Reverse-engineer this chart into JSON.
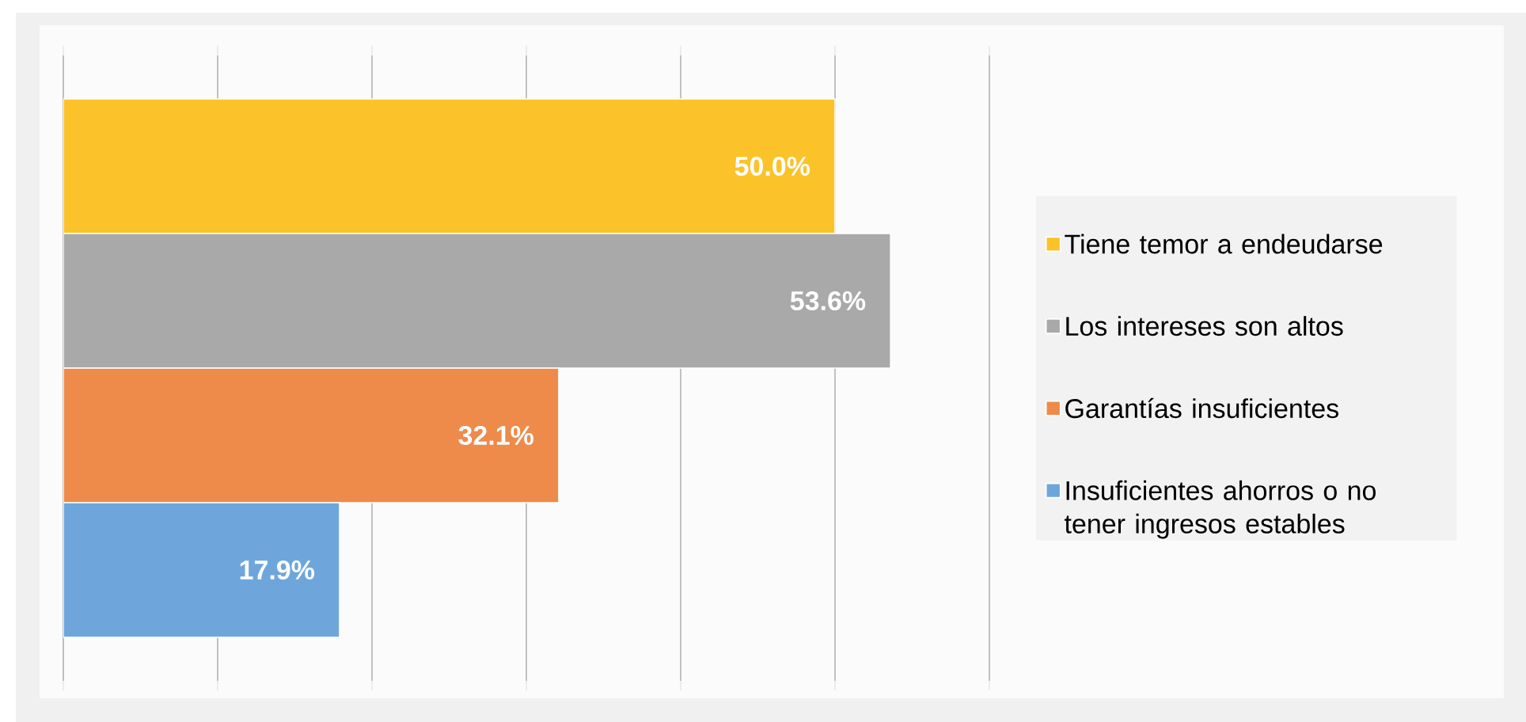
{
  "chart_data": {
    "type": "bar",
    "orientation": "horizontal",
    "categories": [
      null
    ],
    "series": [
      {
        "name": "Tiene temor a endeudarse",
        "color": "#fcc22a",
        "values": [
          50.0
        ],
        "value_labels": [
          "50.0%"
        ]
      },
      {
        "name": "Los intereses son altos",
        "color": "#a9a9a9",
        "values": [
          53.6
        ],
        "value_labels": [
          "53.6%"
        ]
      },
      {
        "name": "Garantías insuficientes",
        "color": "#ee8a4a",
        "values": [
          32.1
        ],
        "value_labels": [
          "32.1%"
        ]
      },
      {
        "name": "Insuficientes ahorros o no tener ingresos estables",
        "color": "#6ea6dc",
        "values": [
          17.9
        ],
        "value_labels": [
          "17.9%"
        ]
      }
    ],
    "xlim": [
      0,
      60
    ],
    "xticks": [
      {
        "value": 0,
        "label": null
      },
      {
        "value": 10,
        "label": null
      },
      {
        "value": 20,
        "label": null
      },
      {
        "value": 30,
        "label": null
      },
      {
        "value": 40,
        "label": null
      },
      {
        "value": 50,
        "label": null
      },
      {
        "value": 60,
        "label": null
      }
    ],
    "grid": "x",
    "legend": "right"
  }
}
